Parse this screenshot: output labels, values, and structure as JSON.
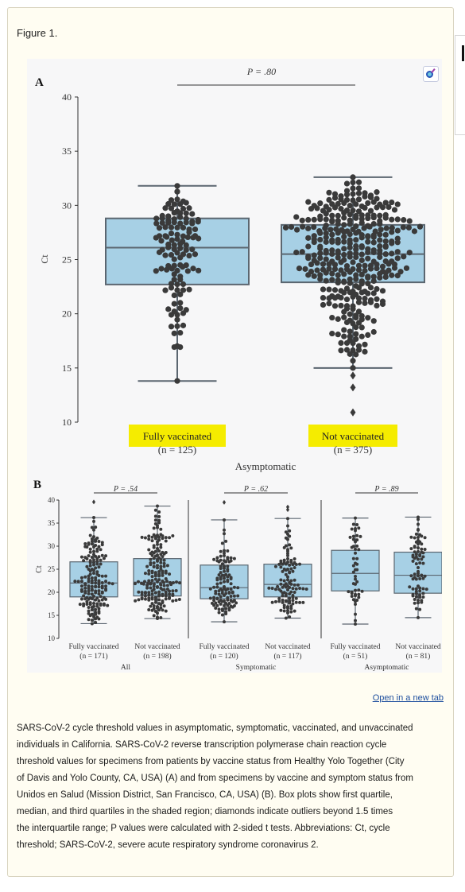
{
  "figure_label": "Figure 1.",
  "open_link": "Open in a new tab",
  "caption": "SARS-CoV-2 cycle threshold values in asymptomatic, symptomatic, vaccinated, and unvaccinated\nindividuals in California. SARS-CoV-2 reverse transcription polymerase chain reaction cycle\nthreshold values for specimens from patients by vaccine status from Healthy Yolo Together (City\nof Davis and Yolo County, CA, USA) (A) and from specimens by vaccine and symptom status from\nUnidos en Salud (Mission District, San Francisco, CA, USA) (B). Box plots show first quartile,\nmedian, and third quartiles in the shaded region; diamonds indicate outliers beyond 1.5 times\nthe interquartile range; P values were calculated with 2-sided t tests. Abbreviations: Ct, cycle\nthreshold; SARS-CoV-2, severe acute respiratory syndrome coronavirus 2.",
  "icons": {
    "zoom": "magnifier-icon"
  },
  "colors": {
    "box_fill": "#a7d0e5",
    "box_stroke": "#5b6670",
    "point": "#3a3a3a",
    "highlight": "#f5ec00"
  },
  "chart_data": [
    {
      "panel": "A",
      "type": "box",
      "ylabel": "Ct",
      "ylim": [
        10,
        40
      ],
      "yticks": [
        10,
        15,
        20,
        25,
        30,
        35,
        40
      ],
      "group_title": "Asymptomatic",
      "p_value": "P = .80",
      "categories": [
        {
          "label": "Fully vaccinated",
          "n": "(n = 125)",
          "n_count": 125,
          "highlighted": true,
          "whisker_low": 13.8,
          "q1": 22.7,
          "median": 26.1,
          "q3": 28.8,
          "whisker_high": 31.8,
          "outliers": []
        },
        {
          "label": "Not vaccinated",
          "n": "(n = 375)",
          "n_count": 375,
          "highlighted": true,
          "whisker_low": 15.0,
          "q1": 22.9,
          "median": 25.5,
          "q3": 28.2,
          "whisker_high": 32.6,
          "outliers": [
            10.9,
            13.2,
            14.3
          ]
        }
      ]
    },
    {
      "panel": "B",
      "type": "box",
      "ylabel": "Ct",
      "ylim": [
        10,
        40
      ],
      "yticks": [
        10,
        15,
        20,
        25,
        30,
        35,
        40
      ],
      "groups": [
        {
          "title": "All",
          "p_value": "P = .54",
          "categories": [
            {
              "label": "Fully vaccinated",
              "n": "(n = 171)",
              "n_count": 171,
              "whisker_low": 13.2,
              "q1": 19.0,
              "median": 22.0,
              "q3": 26.6,
              "whisker_high": 36.2,
              "outliers": [
                39.6
              ]
            },
            {
              "label": "Not vaccinated",
              "n": "(n = 198)",
              "n_count": 198,
              "whisker_low": 14.3,
              "q1": 19.2,
              "median": 22.2,
              "q3": 27.3,
              "whisker_high": 38.7,
              "outliers": []
            }
          ]
        },
        {
          "title": "Symptomatic",
          "p_value": "P = .62",
          "categories": [
            {
              "label": "Fully vaccinated",
              "n": "(n = 120)",
              "n_count": 120,
              "whisker_low": 13.6,
              "q1": 18.6,
              "median": 21.0,
              "q3": 25.9,
              "whisker_high": 35.7,
              "outliers": [
                39.5
              ]
            },
            {
              "label": "Not vaccinated",
              "n": "(n = 117)",
              "n_count": 117,
              "whisker_low": 14.4,
              "q1": 19.0,
              "median": 21.7,
              "q3": 26.1,
              "whisker_high": 36.0,
              "outliers": [
                37.9,
                38.5
              ]
            }
          ]
        },
        {
          "title": "Asymptomatic",
          "p_value": "P = .89",
          "categories": [
            {
              "label": "Fully vaccinated",
              "n": "(n = 51)",
              "n_count": 51,
              "whisker_low": 13.1,
              "q1": 20.3,
              "median": 24.1,
              "q3": 29.1,
              "whisker_high": 36.1,
              "outliers": []
            },
            {
              "label": "Not vaccinated",
              "n": "(n = 81)",
              "n_count": 81,
              "whisker_low": 14.5,
              "q1": 19.8,
              "median": 23.7,
              "q3": 28.7,
              "whisker_high": 36.3,
              "outliers": []
            }
          ]
        }
      ]
    }
  ]
}
